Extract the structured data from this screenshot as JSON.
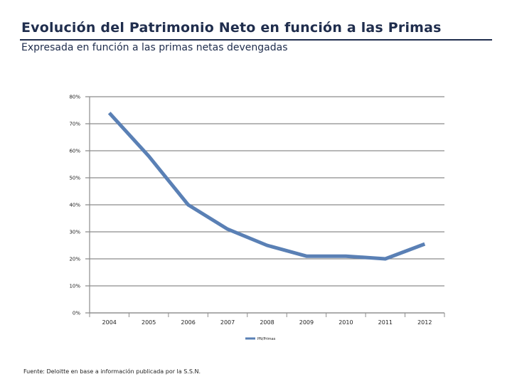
{
  "header": {
    "title": "Evolución del Patrimonio Neto en función a las Primas",
    "subtitle": "Expresada en función a las primas netas devengadas"
  },
  "chart_data": {
    "type": "line",
    "title": "",
    "xlabel": "",
    "ylabel": "",
    "categories": [
      "2004",
      "2005",
      "2006",
      "2007",
      "2008",
      "2009",
      "2010",
      "2011",
      "2012"
    ],
    "series": [
      {
        "name": "PN/Primas",
        "color": "#5a80b5",
        "values": [
          74,
          58,
          40,
          31,
          25,
          21,
          21,
          20,
          25.5
        ]
      }
    ],
    "ylim": [
      0,
      80
    ],
    "yticks": [
      "0%",
      "10%",
      "20%",
      "30%",
      "40%",
      "50%",
      "60%",
      "70%",
      "80%"
    ],
    "grid": true,
    "legend": "bottom"
  },
  "footer": {
    "source": "Fuente: Deloitte en base a información publicada por la S.S.N."
  }
}
